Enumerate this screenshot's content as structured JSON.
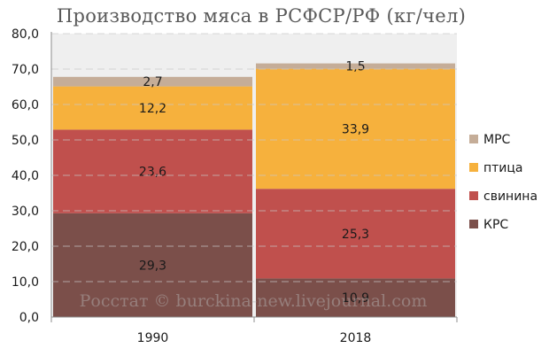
{
  "chart_data": {
    "type": "bar",
    "stacked": true,
    "title": "Производство мяса в РСФСР/РФ (кг/чел)",
    "categories": [
      "1990",
      "2018"
    ],
    "series": [
      {
        "name": "КРС",
        "values": [
          29.3,
          10.9
        ],
        "labels": [
          "29,3",
          "10,9"
        ],
        "color": "#7b4f4a"
      },
      {
        "name": "свинина",
        "values": [
          23.6,
          25.3
        ],
        "labels": [
          "23,6",
          "25,3"
        ],
        "color": "#c0504d"
      },
      {
        "name": "птица",
        "values": [
          12.2,
          33.9
        ],
        "labels": [
          "12,2",
          "33,9"
        ],
        "color": "#f6b13d"
      },
      {
        "name": "МРС",
        "values": [
          2.7,
          1.5
        ],
        "labels": [
          "2,7",
          "1,5"
        ],
        "color": "#c5ad98"
      }
    ],
    "legend_order": [
      "МРС",
      "птица",
      "свинина",
      "КРС"
    ],
    "ylim": [
      0,
      80
    ],
    "yticks": [
      "0,0",
      "10,0",
      "20,0",
      "30,0",
      "40,0",
      "50,0",
      "60,0",
      "70,0",
      "80,0"
    ],
    "grid": true,
    "legend_position": "right",
    "background_fill_to": 80,
    "background_color": "#efefef",
    "watermark": "Росстат © burckina-new.livejournal.com"
  }
}
